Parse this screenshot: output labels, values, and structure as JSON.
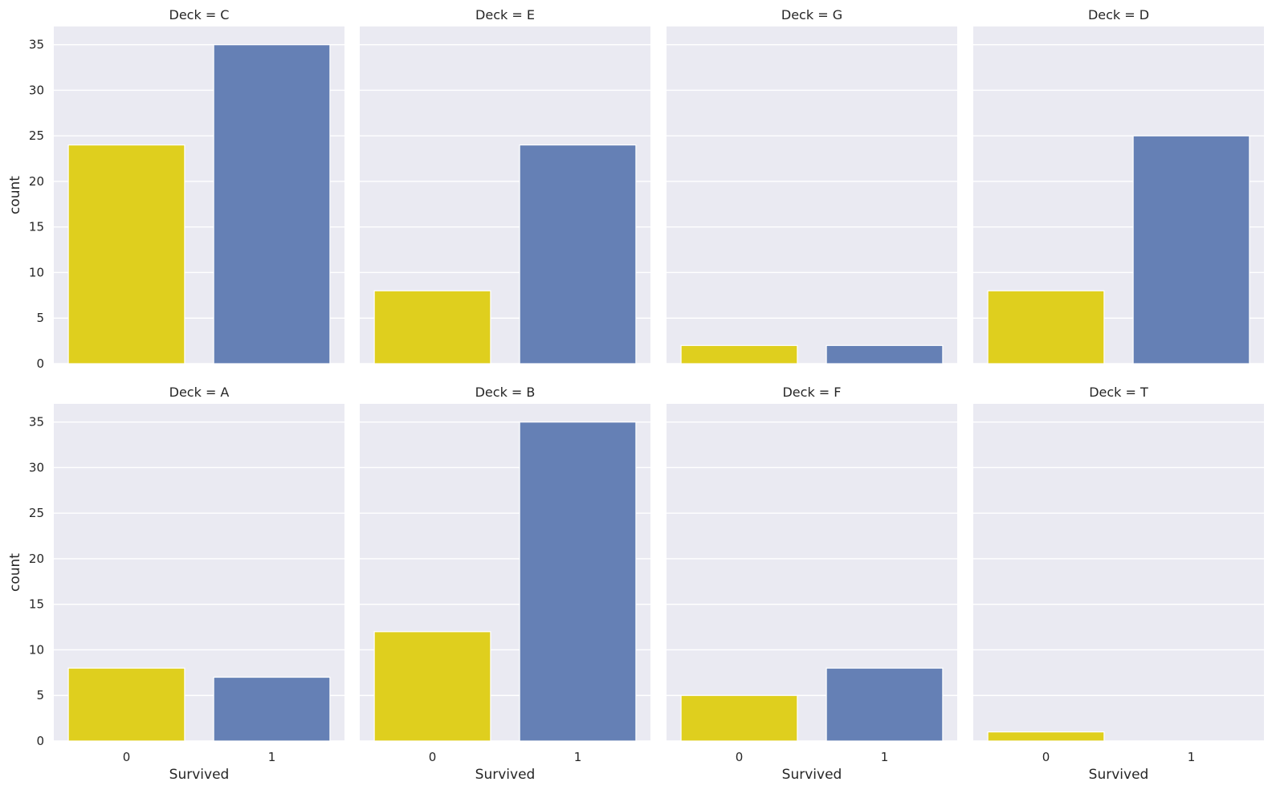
{
  "chart_data": {
    "type": "bar",
    "layout": "facet-grid",
    "rows": 2,
    "cols": 4,
    "categories": [
      "0",
      "1"
    ],
    "colors": [
      "#DFCF1E",
      "#6580B5"
    ],
    "xlabel": "Survived",
    "ylabel": "count",
    "ylim": [
      0,
      37
    ],
    "yticks": [
      0,
      5,
      10,
      15,
      20,
      25,
      30,
      35
    ],
    "grid": true,
    "facets": [
      {
        "title": "Deck = C",
        "values": [
          24,
          35
        ]
      },
      {
        "title": "Deck = E",
        "values": [
          8,
          24
        ]
      },
      {
        "title": "Deck = G",
        "values": [
          2,
          2
        ]
      },
      {
        "title": "Deck = D",
        "values": [
          8,
          25
        ]
      },
      {
        "title": "Deck = A",
        "values": [
          8,
          7
        ]
      },
      {
        "title": "Deck = B",
        "values": [
          12,
          35
        ]
      },
      {
        "title": "Deck = F",
        "values": [
          5,
          8
        ]
      },
      {
        "title": "Deck = T",
        "values": [
          1,
          0
        ]
      }
    ]
  }
}
